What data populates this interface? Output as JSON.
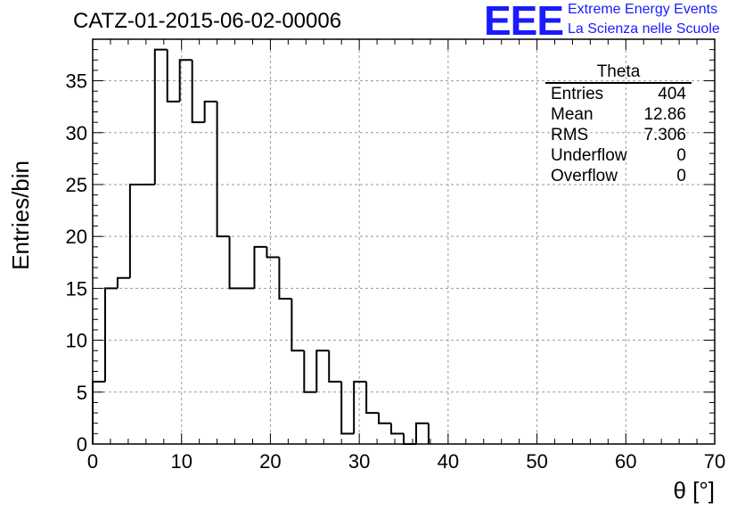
{
  "title": "CATZ-01-2015-06-02-00006",
  "logo": {
    "mark": "EEE",
    "line1": "Extreme Energy Events",
    "line2": "La Scienza nelle Scuole",
    "color": "#1a1aff"
  },
  "stats_box": {
    "name": "Theta",
    "rows": [
      {
        "label": "Entries",
        "value": "404"
      },
      {
        "label": "Mean",
        "value": "12.86"
      },
      {
        "label": "RMS",
        "value": "7.306"
      },
      {
        "label": "Underflow",
        "value": "0"
      },
      {
        "label": "Overflow",
        "value": "0"
      }
    ]
  },
  "chart_data": {
    "type": "bar",
    "histogram": "step",
    "title": "CATZ-01-2015-06-02-00006",
    "xlabel": "θ [°]",
    "ylabel": "Entries/bin",
    "xlim": [
      0,
      70
    ],
    "ylim": [
      0,
      39
    ],
    "xticks": [
      0,
      10,
      20,
      30,
      40,
      50,
      60,
      70
    ],
    "yticks": [
      0,
      5,
      10,
      15,
      20,
      25,
      30,
      35
    ],
    "grid": true,
    "bin_edges": [
      0,
      1.4,
      2.8,
      4.2,
      5.6,
      7,
      8.4,
      9.8,
      11.2,
      12.6,
      14,
      15.4,
      16.8,
      18.2,
      19.6,
      21,
      22.4,
      23.8,
      25.2,
      26.6,
      28,
      29.4,
      30.8,
      32.2,
      33.6,
      35,
      36.4,
      37.8
    ],
    "values": [
      6,
      15,
      16,
      25,
      25,
      38,
      33,
      37,
      31,
      33,
      20,
      15,
      15,
      19,
      18,
      14,
      9,
      5,
      9,
      6,
      1,
      6,
      3,
      2,
      1,
      0,
      2
    ],
    "line_color": "#000000"
  }
}
